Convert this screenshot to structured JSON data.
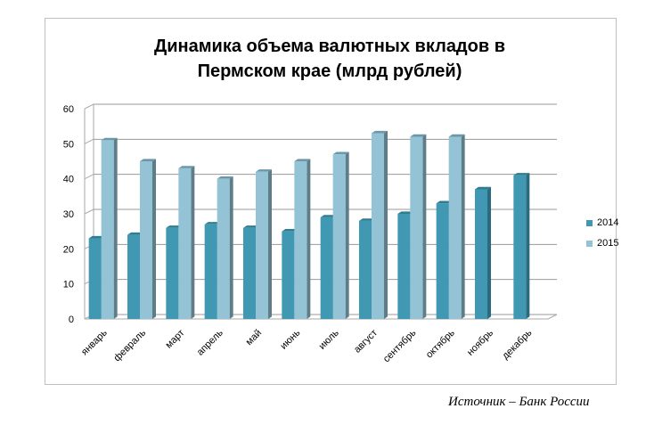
{
  "chart_data": {
    "type": "bar",
    "title": "Динамика объема валютных вкладов в Пермском крае (млрд рублей)",
    "title_lines": [
      "Динамика объема валютных вкладов в",
      "Пермском крае (млрд рублей)"
    ],
    "categories": [
      "январь",
      "февраль",
      "март",
      "апрель",
      "май",
      "июнь",
      "июль",
      "август",
      "сентябрь",
      "октябрь",
      "ноябрь",
      "декабрь"
    ],
    "series": [
      {
        "name": "2014",
        "color": "#4198b2",
        "values": [
          23,
          24,
          26,
          27,
          26,
          25,
          29,
          28,
          30,
          33,
          37,
          41
        ]
      },
      {
        "name": "2015",
        "color": "#93c3d5",
        "values": [
          51,
          45,
          43,
          40,
          42,
          45,
          47,
          53,
          52,
          52,
          null,
          null
        ]
      }
    ],
    "yticks": [
      0,
      10,
      20,
      30,
      40,
      50,
      60
    ],
    "ylim": [
      0,
      60
    ],
    "grid": true,
    "legend": "right"
  },
  "source": "Источник – Банк России"
}
